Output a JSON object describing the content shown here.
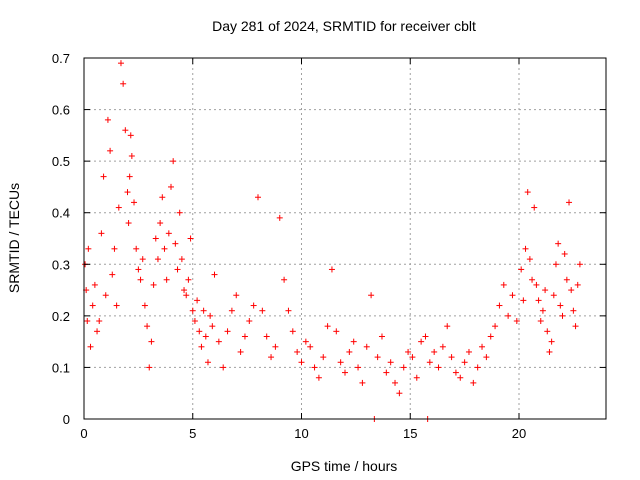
{
  "chart_data": {
    "type": "scatter",
    "title": "Day 281 of 2024, SRMTID for receiver cblt",
    "xlabel": "GPS time / hours",
    "ylabel": "SRMTID / TECUs",
    "xlim": [
      0,
      24
    ],
    "ylim": [
      0,
      0.7
    ],
    "xticks": [
      0,
      5,
      10,
      15,
      20
    ],
    "yticks": [
      0,
      0.1,
      0.2,
      0.3,
      0.4,
      0.5,
      0.6,
      0.7
    ],
    "xtick_labels": [
      "0",
      "5",
      "10",
      "15",
      "20"
    ],
    "ytick_labels": [
      "0",
      "0.1",
      "0.2",
      "0.3",
      "0.4",
      "0.5",
      "0.6",
      "0.7"
    ],
    "grid": true,
    "marker": "+",
    "color": "#ff0000",
    "x": [
      0.05,
      0.1,
      0.15,
      0.2,
      0.3,
      0.4,
      0.5,
      0.6,
      0.7,
      0.8,
      0.9,
      1.0,
      1.1,
      1.2,
      1.3,
      1.4,
      1.5,
      1.6,
      1.7,
      1.8,
      1.9,
      2.0,
      2.05,
      2.1,
      2.15,
      2.2,
      2.3,
      2.4,
      2.5,
      2.6,
      2.7,
      2.8,
      2.9,
      3.0,
      3.1,
      3.2,
      3.3,
      3.4,
      3.5,
      3.6,
      3.7,
      3.8,
      3.9,
      4.0,
      4.1,
      4.2,
      4.3,
      4.4,
      4.5,
      4.6,
      4.7,
      4.8,
      4.9,
      5.0,
      5.1,
      5.2,
      5.3,
      5.4,
      5.5,
      5.6,
      5.7,
      5.8,
      5.9,
      6.0,
      6.2,
      6.4,
      6.6,
      6.8,
      7.0,
      7.2,
      7.4,
      7.6,
      7.8,
      8.0,
      8.2,
      8.4,
      8.6,
      8.8,
      9.0,
      9.2,
      9.4,
      9.6,
      9.8,
      10.0,
      10.2,
      10.4,
      10.6,
      10.8,
      11.0,
      11.2,
      11.4,
      11.6,
      11.8,
      12.0,
      12.2,
      12.4,
      12.6,
      12.8,
      13.0,
      13.2,
      13.35,
      13.5,
      13.7,
      13.9,
      14.1,
      14.3,
      14.5,
      14.7,
      14.9,
      15.1,
      15.3,
      15.5,
      15.7,
      15.8,
      15.9,
      16.1,
      16.3,
      16.5,
      16.7,
      16.9,
      17.1,
      17.3,
      17.5,
      17.7,
      17.9,
      18.1,
      18.3,
      18.5,
      18.7,
      18.9,
      19.1,
      19.3,
      19.5,
      19.7,
      19.9,
      20.1,
      20.2,
      20.3,
      20.4,
      20.5,
      20.6,
      20.7,
      20.8,
      20.9,
      21.0,
      21.1,
      21.2,
      21.3,
      21.4,
      21.5,
      21.6,
      21.7,
      21.8,
      21.9,
      22.0,
      22.1,
      22.2,
      22.3,
      22.4,
      22.5,
      22.6,
      22.7,
      22.8
    ],
    "y": [
      0.3,
      0.25,
      0.19,
      0.33,
      0.14,
      0.22,
      0.26,
      0.17,
      0.19,
      0.36,
      0.47,
      0.24,
      0.58,
      0.52,
      0.28,
      0.33,
      0.22,
      0.41,
      0.69,
      0.65,
      0.56,
      0.44,
      0.38,
      0.47,
      0.55,
      0.51,
      0.42,
      0.33,
      0.29,
      0.27,
      0.31,
      0.22,
      0.18,
      0.1,
      0.15,
      0.26,
      0.35,
      0.31,
      0.38,
      0.43,
      0.33,
      0.27,
      0.36,
      0.45,
      0.5,
      0.34,
      0.29,
      0.4,
      0.31,
      0.25,
      0.24,
      0.27,
      0.35,
      0.21,
      0.19,
      0.23,
      0.17,
      0.14,
      0.21,
      0.16,
      0.11,
      0.2,
      0.18,
      0.28,
      0.15,
      0.1,
      0.17,
      0.21,
      0.24,
      0.13,
      0.16,
      0.19,
      0.22,
      0.43,
      0.21,
      0.16,
      0.12,
      0.14,
      0.39,
      0.27,
      0.21,
      0.17,
      0.13,
      0.11,
      0.15,
      0.14,
      0.1,
      0.08,
      0.12,
      0.18,
      0.29,
      0.17,
      0.11,
      0.09,
      0.13,
      0.15,
      0.1,
      0.07,
      0.14,
      0.24,
      0.0,
      0.12,
      0.16,
      0.09,
      0.11,
      0.07,
      0.05,
      0.1,
      0.13,
      0.12,
      0.08,
      0.15,
      0.16,
      0.0,
      0.11,
      0.13,
      0.1,
      0.14,
      0.18,
      0.12,
      0.09,
      0.08,
      0.11,
      0.13,
      0.07,
      0.1,
      0.14,
      0.12,
      0.16,
      0.18,
      0.22,
      0.26,
      0.2,
      0.24,
      0.19,
      0.29,
      0.23,
      0.33,
      0.44,
      0.31,
      0.27,
      0.41,
      0.26,
      0.23,
      0.19,
      0.21,
      0.25,
      0.17,
      0.13,
      0.15,
      0.24,
      0.3,
      0.34,
      0.22,
      0.2,
      0.32,
      0.27,
      0.42,
      0.25,
      0.21,
      0.18,
      0.26,
      0.3
    ]
  }
}
